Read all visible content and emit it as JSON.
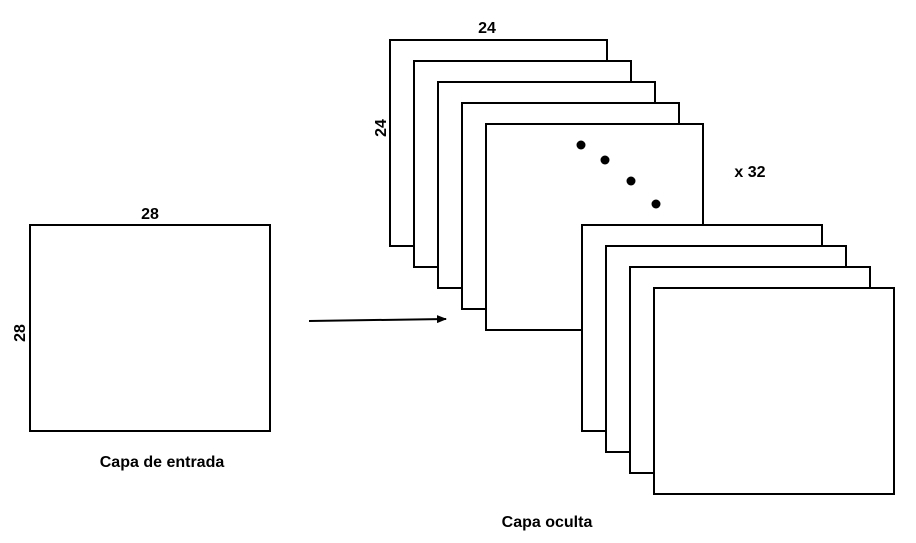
{
  "input_layer": {
    "width_label": "28",
    "height_label": "28",
    "caption": "Capa de entrada"
  },
  "hidden_layer": {
    "width_label": "24",
    "height_label": "24",
    "count_label": "x 32",
    "caption": "Capa oculta",
    "front_stack_maps": 5,
    "back_stack_maps": 4,
    "ellipsis_dots": 4
  },
  "colors": {
    "stroke": "#000000",
    "fill": "#ffffff"
  }
}
